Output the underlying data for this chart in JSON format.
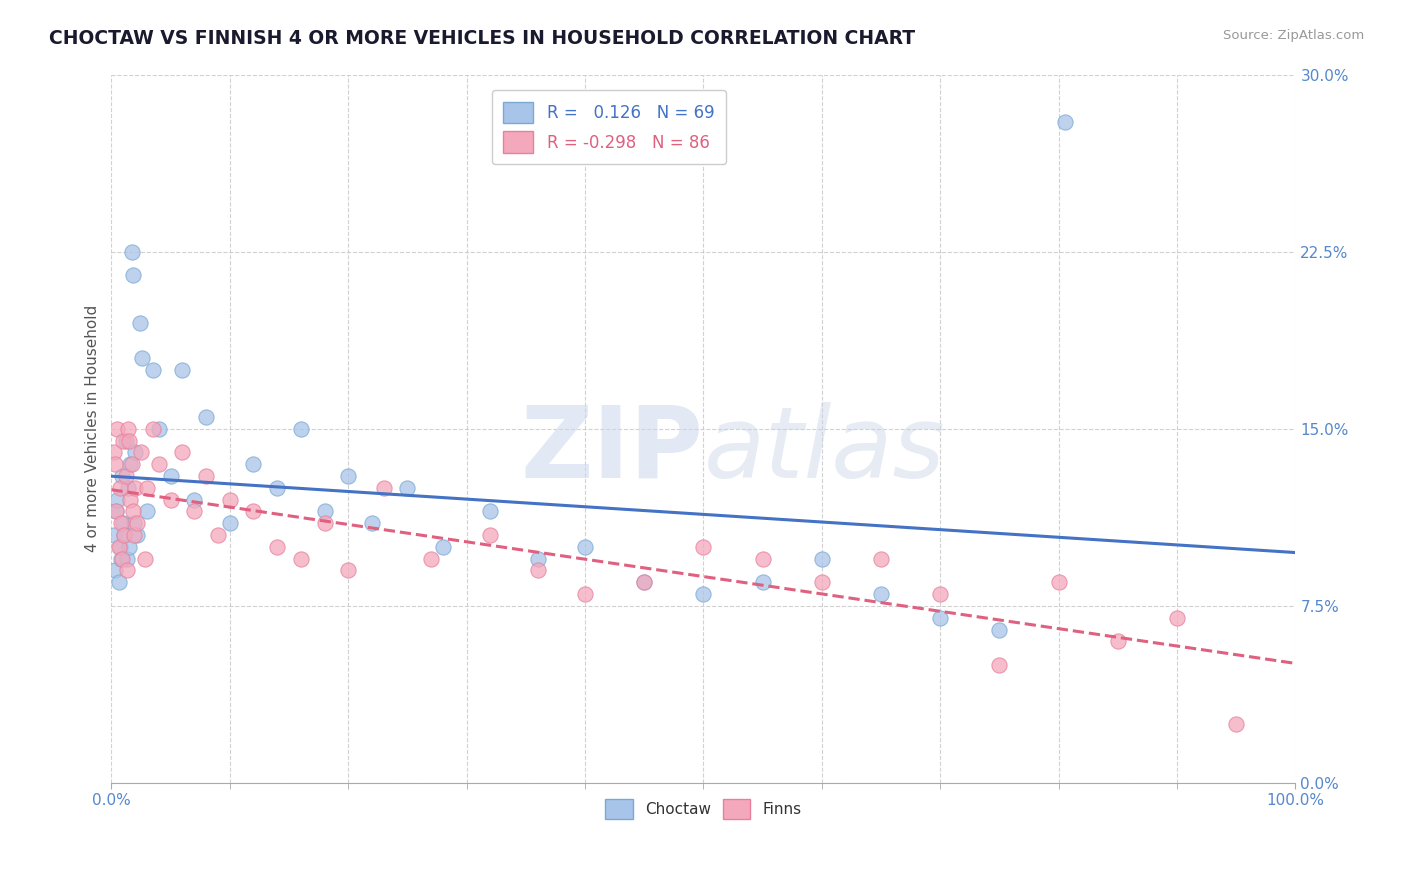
{
  "title": "CHOCTAW VS FINNISH 4 OR MORE VEHICLES IN HOUSEHOLD CORRELATION CHART",
  "source": "Source: ZipAtlas.com",
  "ylabel": "4 or more Vehicles in Household",
  "xlim": [
    0.0,
    100.0
  ],
  "ylim": [
    0.0,
    30.0
  ],
  "yticks": [
    0.0,
    7.5,
    15.0,
    22.5,
    30.0
  ],
  "choctaw_color": "#a8c4e8",
  "finns_color": "#f4a8bc",
  "choctaw_edge": "#7aaad4",
  "finns_edge": "#e8809c",
  "choctaw_line_color": "#4472c4",
  "finns_line_color": "#e06080",
  "background_color": "#ffffff",
  "tick_color": "#5588cc",
  "choctaw_R": 0.126,
  "choctaw_N": 69,
  "finns_R": -0.298,
  "finns_N": 86,
  "watermark": "ZIPatlas",
  "choctaw_x": [
    0.2,
    0.3,
    0.4,
    0.5,
    0.6,
    0.7,
    0.8,
    0.9,
    1.0,
    1.1,
    1.2,
    1.3,
    1.4,
    1.5,
    1.6,
    1.7,
    1.8,
    1.9,
    2.0,
    2.2,
    2.4,
    2.6,
    3.0,
    3.5,
    4.0,
    5.0,
    6.0,
    7.0,
    8.0,
    10.0,
    12.0,
    14.0,
    16.0,
    18.0,
    20.0,
    22.0,
    25.0,
    28.0,
    32.0,
    36.0,
    40.0,
    45.0,
    50.0,
    55.0,
    60.0,
    65.0,
    70.0,
    75.0,
    80.5
  ],
  "choctaw_y": [
    10.5,
    9.0,
    11.5,
    12.0,
    8.5,
    10.0,
    9.5,
    13.0,
    11.0,
    10.5,
    14.5,
    9.5,
    12.5,
    10.0,
    13.5,
    22.5,
    21.5,
    11.0,
    14.0,
    10.5,
    19.5,
    18.0,
    11.5,
    17.5,
    15.0,
    13.0,
    17.5,
    12.0,
    15.5,
    11.0,
    13.5,
    12.5,
    15.0,
    11.5,
    13.0,
    11.0,
    12.5,
    10.0,
    11.5,
    9.5,
    10.0,
    8.5,
    8.0,
    8.5,
    9.5,
    8.0,
    7.0,
    6.5,
    28.0
  ],
  "finns_x": [
    0.2,
    0.3,
    0.4,
    0.5,
    0.6,
    0.7,
    0.8,
    0.9,
    1.0,
    1.1,
    1.2,
    1.3,
    1.4,
    1.5,
    1.6,
    1.7,
    1.8,
    1.9,
    2.0,
    2.2,
    2.5,
    2.8,
    3.0,
    3.5,
    4.0,
    5.0,
    6.0,
    7.0,
    8.0,
    9.0,
    10.0,
    12.0,
    14.0,
    16.0,
    18.0,
    20.0,
    23.0,
    27.0,
    32.0,
    36.0,
    40.0,
    45.0,
    50.0,
    55.0,
    60.0,
    65.0,
    70.0,
    75.0,
    80.0,
    85.0,
    90.0,
    95.0
  ],
  "finns_y": [
    14.0,
    13.5,
    11.5,
    15.0,
    10.0,
    12.5,
    11.0,
    9.5,
    14.5,
    10.5,
    13.0,
    9.0,
    15.0,
    14.5,
    12.0,
    13.5,
    11.5,
    10.5,
    12.5,
    11.0,
    14.0,
    9.5,
    12.5,
    15.0,
    13.5,
    12.0,
    14.0,
    11.5,
    13.0,
    10.5,
    12.0,
    11.5,
    10.0,
    9.5,
    11.0,
    9.0,
    12.5,
    9.5,
    10.5,
    9.0,
    8.0,
    8.5,
    10.0,
    9.5,
    8.5,
    9.5,
    8.0,
    5.0,
    8.5,
    6.0,
    7.0,
    2.5
  ]
}
